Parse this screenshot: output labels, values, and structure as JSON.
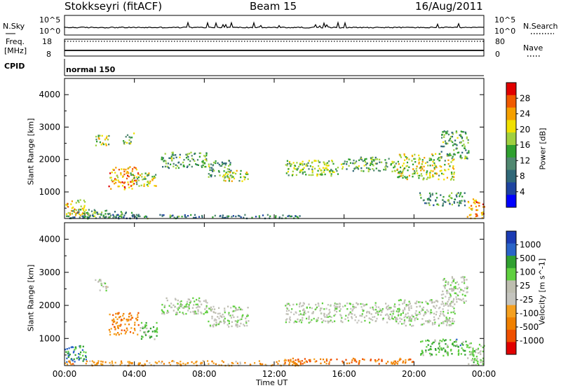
{
  "header": {
    "station": "Stokkseyri (fitACF)",
    "beam": "Beam 15",
    "date": "16/Aug/2011"
  },
  "strip_panels": {
    "nsky_label": "N.Sky",
    "nsearch_label": "N.Search",
    "nsky_ticks": [
      "10^5",
      "10^0"
    ],
    "nsky_right_ticks": [
      "10^5",
      "10^0"
    ],
    "freq_label_1": "Freq.",
    "freq_label_2": "[MHz]",
    "freq_ticks": [
      "18",
      "8"
    ],
    "nave_label": "Nave",
    "nave_ticks": [
      "80",
      "0"
    ],
    "cpid_label": "CPID",
    "cpid_value": "normal 150"
  },
  "chart_data": [
    {
      "type": "heatmap",
      "name": "power-panel",
      "xlabel": "",
      "ylabel": "Slant Range [km]",
      "xlim": [
        0,
        24
      ],
      "ylim": [
        180,
        4500
      ],
      "xticks": [
        "00:00",
        "04:00",
        "08:00",
        "12:00",
        "16:00",
        "20:00",
        "00:00"
      ],
      "yticks": [
        1000,
        2000,
        3000,
        4000
      ],
      "colorbar": {
        "label": "Power [dB]",
        "ticks": [
          "28",
          "24",
          "20",
          "16",
          "12",
          "8",
          "4"
        ],
        "colors": [
          "#e10000",
          "#f05a00",
          "#f5a000",
          "#f0e000",
          "#a0d040",
          "#30a030",
          "#508870",
          "#306878",
          "#1e44a0",
          "#0000ff"
        ]
      },
      "scatter_regions": [
        {
          "t": [
            0.0,
            1.2
          ],
          "r": [
            300,
            800
          ],
          "level": 0.7
        },
        {
          "t": [
            0.4,
            2.4
          ],
          "r": [
            220,
            480
          ],
          "level": 0.45
        },
        {
          "t": [
            1.0,
            4.5
          ],
          "r": [
            220,
            420
          ],
          "level": 0.35
        },
        {
          "t": [
            1.7,
            2.5
          ],
          "r": [
            2450,
            2800
          ],
          "level": 0.55
        },
        {
          "t": [
            3.3,
            4.0
          ],
          "r": [
            2500,
            2850
          ],
          "level": 0.5
        },
        {
          "t": [
            2.5,
            4.2
          ],
          "r": [
            1100,
            1800
          ],
          "level": 0.8
        },
        {
          "t": [
            3.7,
            5.2
          ],
          "r": [
            1200,
            1600
          ],
          "level": 0.55
        },
        {
          "t": [
            5.5,
            8.2
          ],
          "r": [
            1750,
            2250
          ],
          "level": 0.4
        },
        {
          "t": [
            8.2,
            9.5
          ],
          "r": [
            1450,
            2000
          ],
          "level": 0.4
        },
        {
          "t": [
            9.0,
            10.5
          ],
          "r": [
            1350,
            1700
          ],
          "level": 0.6
        },
        {
          "t": [
            12.6,
            15.8
          ],
          "r": [
            1500,
            2000
          ],
          "level": 0.5
        },
        {
          "t": [
            15.8,
            19.0
          ],
          "r": [
            1650,
            2100
          ],
          "level": 0.45
        },
        {
          "t": [
            19.0,
            22.3
          ],
          "r": [
            1400,
            2200
          ],
          "level": 0.6
        },
        {
          "t": [
            21.5,
            23.1
          ],
          "r": [
            2050,
            2900
          ],
          "level": 0.4
        },
        {
          "t": [
            20.3,
            23.0
          ],
          "r": [
            600,
            1000
          ],
          "level": 0.35
        },
        {
          "t": [
            23.0,
            24.0
          ],
          "r": [
            200,
            800
          ],
          "level": 0.8
        },
        {
          "t": [
            0.0,
            13.5
          ],
          "r": [
            200,
            320
          ],
          "level": 0.3
        }
      ]
    },
    {
      "type": "heatmap",
      "name": "velocity-panel",
      "xlabel": "Time UT",
      "ylabel": "Slant Range [km]",
      "xlim": [
        0,
        24
      ],
      "ylim": [
        180,
        4500
      ],
      "xticks": [
        "00:00",
        "04:00",
        "08:00",
        "12:00",
        "16:00",
        "20:00",
        "00:00"
      ],
      "yticks": [
        1000,
        2000,
        3000,
        4000
      ],
      "colorbar": {
        "label": "Velocity [m s^-1]",
        "ticks": [
          "1000",
          "500",
          "100",
          "25",
          "-25",
          "-100",
          "-500",
          "-1000"
        ],
        "colors": [
          "#1c3cb4",
          "#2a64c8",
          "#30a030",
          "#60d040",
          "#bebeb0",
          "#c4c4be",
          "#f5a020",
          "#f08000",
          "#f05000",
          "#e10000"
        ]
      },
      "scatter_regions": [
        {
          "t": [
            0.0,
            1.2
          ],
          "r": [
            300,
            800
          ],
          "level": 0.2
        },
        {
          "t": [
            1.7,
            2.5
          ],
          "r": [
            2450,
            2800
          ],
          "level": 0.5
        },
        {
          "t": [
            2.5,
            4.2
          ],
          "r": [
            1100,
            1800
          ],
          "level": 0.75
        },
        {
          "t": [
            4.2,
            5.3
          ],
          "r": [
            1000,
            1500
          ],
          "level": 0.3
        },
        {
          "t": [
            5.5,
            8.2
          ],
          "r": [
            1750,
            2250
          ],
          "level": 0.45
        },
        {
          "t": [
            8.2,
            10.5
          ],
          "r": [
            1350,
            2000
          ],
          "level": 0.45
        },
        {
          "t": [
            12.6,
            19.0
          ],
          "r": [
            1500,
            2100
          ],
          "level": 0.45
        },
        {
          "t": [
            19.0,
            22.3
          ],
          "r": [
            1400,
            2200
          ],
          "level": 0.45
        },
        {
          "t": [
            21.5,
            23.1
          ],
          "r": [
            2050,
            2900
          ],
          "level": 0.45
        },
        {
          "t": [
            20.3,
            23.0
          ],
          "r": [
            500,
            1000
          ],
          "level": 0.3
        },
        {
          "t": [
            23.0,
            24.0
          ],
          "r": [
            200,
            900
          ],
          "level": 0.4
        },
        {
          "t": [
            0.0,
            13.5
          ],
          "r": [
            200,
            350
          ],
          "level": 0.7
        },
        {
          "t": [
            12.5,
            20.0
          ],
          "r": [
            250,
            420
          ],
          "level": 0.8
        }
      ]
    }
  ]
}
